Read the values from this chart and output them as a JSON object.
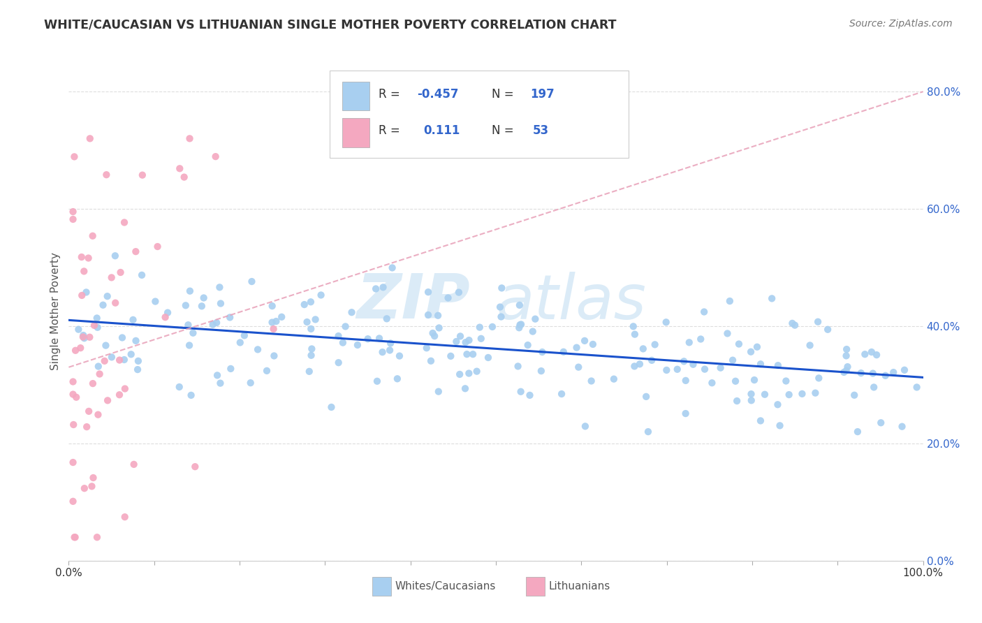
{
  "title": "WHITE/CAUCASIAN VS LITHUANIAN SINGLE MOTHER POVERTY CORRELATION CHART",
  "source": "Source: ZipAtlas.com",
  "ylabel": "Single Mother Poverty",
  "blue_R": -0.457,
  "blue_N": 197,
  "pink_R": 0.111,
  "pink_N": 53,
  "blue_color": "#A8CFF0",
  "pink_color": "#F4A8C0",
  "blue_line_color": "#1A52CC",
  "pink_line_color": "#E8A0B8",
  "legend_text_color": "#3366CC",
  "watermark_text": "ZIP",
  "watermark_text2": "atlas",
  "xlim": [
    0.0,
    1.0
  ],
  "ylim": [
    0.0,
    0.85
  ],
  "right_ytick_vals": [
    0.0,
    0.2,
    0.4,
    0.6,
    0.8
  ],
  "right_ytick_labels": [
    "0.0%",
    "20.0%",
    "40.0%",
    "60.0%",
    "80.0%"
  ],
  "grid_color": "#DDDDDD",
  "spine_color": "#CCCCCC",
  "title_color": "#333333",
  "source_color": "#777777"
}
